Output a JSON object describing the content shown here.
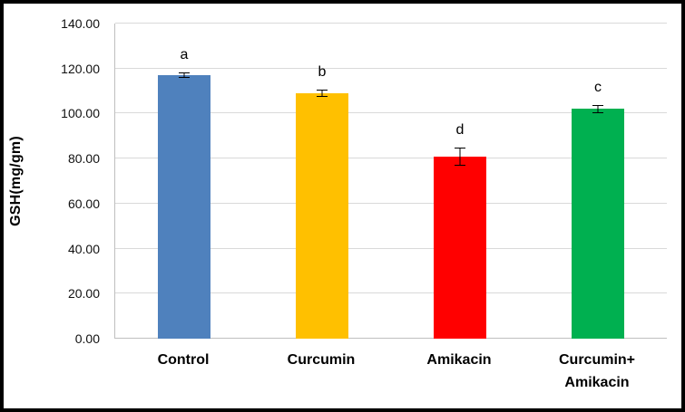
{
  "chart_data": {
    "type": "bar",
    "title": "",
    "xlabel": "",
    "ylabel": "GSH(mg/gm)",
    "ylim": [
      0,
      140
    ],
    "ytick_step": 20,
    "ytick_labels": [
      "0.00",
      "20.00",
      "40.00",
      "60.00",
      "80.00",
      "100.00",
      "120.00",
      "140.00"
    ],
    "grid": true,
    "legend": "none",
    "categories": [
      "Control",
      "Curcumin",
      "Amikacin",
      "Curcumin+\nAmikacin"
    ],
    "values": [
      117,
      109,
      81,
      102
    ],
    "errors": [
      1.2,
      1.5,
      4,
      1.8
    ],
    "bar_letters": [
      "a",
      "b",
      "d",
      "c"
    ],
    "bar_colors": [
      "#4f81bd",
      "#ffc000",
      "#ff0000",
      "#00b050"
    ],
    "gridline_color": "#d9d9d9",
    "axis_color": "#bfbfbf",
    "frame_color": "#000000"
  }
}
